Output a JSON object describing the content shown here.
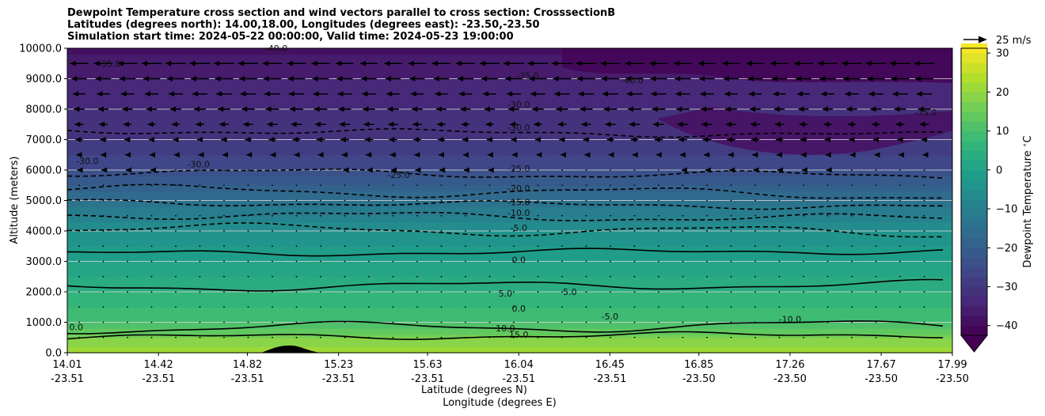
{
  "chart_data": {
    "type": "contour",
    "title_lines": [
      "Dewpoint Temperature cross section and wind vectors parallel to cross section: CrosssectionB",
      "Latitudes (degrees north): 14.00,18.00, Longitudes (degrees east): -23.50,-23.50",
      "Simulation start time: 2024-05-22 00:00:00, Valid time: 2024-05-23 19:00:00"
    ],
    "ylabel": "Altitude (meters)",
    "xlabel_lines": [
      "Latitude (degrees N)",
      "Longitude (degrees E)"
    ],
    "ylim": [
      0,
      10000
    ],
    "y_ticks": [
      "0.0",
      "1000.0",
      "2000.0",
      "3000.0",
      "4000.0",
      "5000.0",
      "6000.0",
      "7000.0",
      "8000.0",
      "9000.0",
      "10000.0"
    ],
    "x_ticks": [
      {
        "lat": "14.01",
        "lon": "-23.51"
      },
      {
        "lat": "14.42",
        "lon": "-23.51"
      },
      {
        "lat": "14.82",
        "lon": "-23.51"
      },
      {
        "lat": "15.23",
        "lon": "-23.51"
      },
      {
        "lat": "15.63",
        "lon": "-23.51"
      },
      {
        "lat": "16.04",
        "lon": "-23.51"
      },
      {
        "lat": "16.45",
        "lon": "-23.51"
      },
      {
        "lat": "16.85",
        "lon": "-23.50"
      },
      {
        "lat": "17.26",
        "lon": "-23.50"
      },
      {
        "lat": "17.67",
        "lon": "-23.50"
      },
      {
        "lat": "17.99",
        "lon": "-23.50"
      }
    ],
    "dewpoint_profile": [
      {
        "z": 0,
        "t": 22
      },
      {
        "z": 500,
        "t": 17
      },
      {
        "z": 1000,
        "t": 10
      },
      {
        "z": 2000,
        "t": 5
      },
      {
        "z": 3000,
        "t": 0
      },
      {
        "z": 4000,
        "t": -5
      },
      {
        "z": 4500,
        "t": -10
      },
      {
        "z": 5000,
        "t": -15
      },
      {
        "z": 5500,
        "t": -20
      },
      {
        "z": 6000,
        "t": -25
      },
      {
        "z": 7000,
        "t": -30
      },
      {
        "z": 9000,
        "t": -35
      },
      {
        "z": 10000,
        "t": -38
      }
    ],
    "contour_levels": [
      {
        "value": -30,
        "z": 7300,
        "dashed": true
      },
      {
        "value": -25,
        "z": 5950,
        "dashed": true
      },
      {
        "value": -20,
        "z": 5350,
        "dashed": true
      },
      {
        "value": -15,
        "z": 4950,
        "dashed": true
      },
      {
        "value": -10,
        "z": 4550,
        "dashed": true
      },
      {
        "value": -5,
        "z": 4100,
        "dashed": true
      },
      {
        "value": 0,
        "z": 3250,
        "dashed": false
      },
      {
        "value": 5,
        "z": 2150,
        "dashed": false
      },
      {
        "value": 10,
        "z": 800,
        "dashed": false
      },
      {
        "value": 15,
        "z": 500,
        "dashed": false
      }
    ],
    "contour_labels": [
      {
        "text": "-30.0",
        "lat": 16.04,
        "z": 8150
      },
      {
        "text": "-30.0",
        "lat": 16.04,
        "z": 7400
      },
      {
        "text": "-35.0",
        "lat": 16.08,
        "z": 9100
      },
      {
        "text": "-40.0",
        "lat": 16.55,
        "z": 8950
      },
      {
        "text": "-35.0",
        "lat": 14.2,
        "z": 9500
      },
      {
        "text": "-40.0",
        "lat": 14.95,
        "z": 10000
      },
      {
        "text": "-30.0",
        "lat": 14.1,
        "z": 6300
      },
      {
        "text": "-30.0",
        "lat": 14.6,
        "z": 6200
      },
      {
        "text": "-35.0",
        "lat": 17.87,
        "z": 7900
      },
      {
        "text": "-25.0",
        "lat": 15.5,
        "z": 5850
      },
      {
        "text": "-25.0",
        "lat": 16.04,
        "z": 6050
      },
      {
        "text": "-20.0",
        "lat": 16.04,
        "z": 5400
      },
      {
        "text": "-15.0",
        "lat": 16.04,
        "z": 4950
      },
      {
        "text": "-10.0",
        "lat": 16.04,
        "z": 4600
      },
      {
        "text": "-5.0",
        "lat": 16.04,
        "z": 4100
      },
      {
        "text": "0.0",
        "lat": 16.04,
        "z": 3050
      },
      {
        "text": "5.0",
        "lat": 15.98,
        "z": 1950
      },
      {
        "text": "5.0",
        "lat": 16.27,
        "z": 2000
      },
      {
        "text": "0.0",
        "lat": 16.04,
        "z": 1450
      },
      {
        "text": "-5.0",
        "lat": 16.45,
        "z": 1200
      },
      {
        "text": "-10.0",
        "lat": 17.26,
        "z": 1100
      },
      {
        "text": "10.0",
        "lat": 15.98,
        "z": 800
      },
      {
        "text": "15.0",
        "lat": 16.04,
        "z": 600
      },
      {
        "text": "0.0",
        "lat": 14.05,
        "z": 850
      }
    ],
    "colorbar": {
      "label": "Dewpoint Temperature $^\\circ$C",
      "ticks": [
        "30",
        "20",
        "10",
        "0",
        "−10",
        "−20",
        "−30",
        "−40"
      ],
      "range": [
        -42,
        32
      ],
      "colormap": "viridis",
      "extend": "min"
    },
    "quiver_key": "25 m/s",
    "terrain_color": "#000000",
    "grid": "horizontal"
  }
}
